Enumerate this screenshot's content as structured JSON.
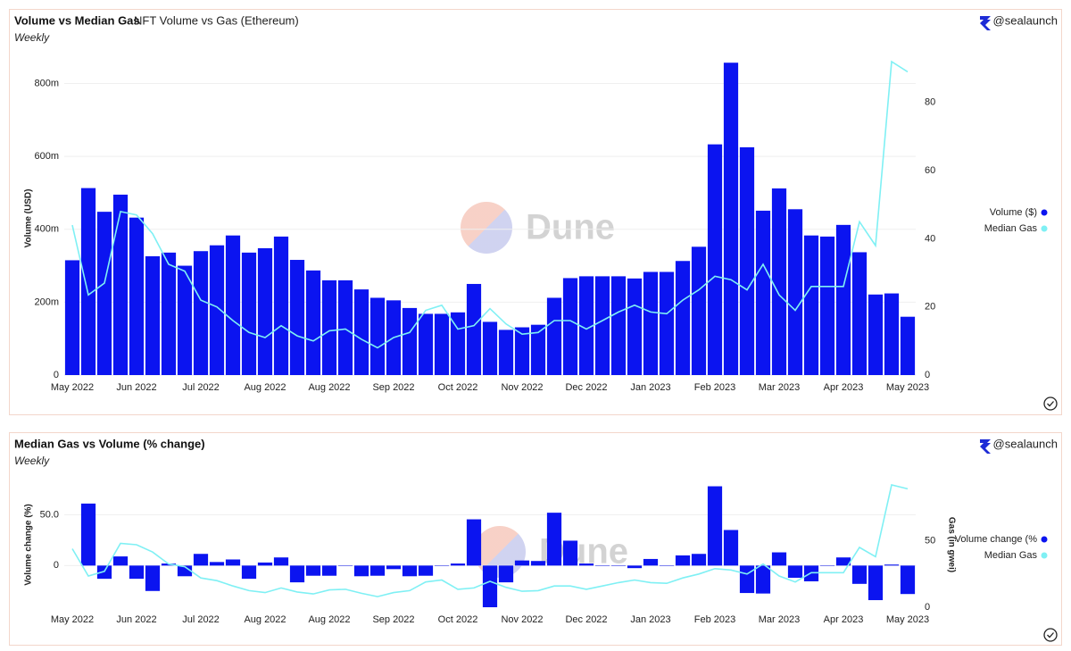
{
  "chart_data": [
    {
      "type": "bar",
      "title": "Volume vs Median Gas",
      "subtitle": "NFT Volume vs Gas (Ethereum)",
      "period": "Weekly",
      "attribution": "@sealaunch",
      "watermark": "Dune",
      "y_label": "Volume (USD)",
      "legend": "right",
      "grid": true,
      "categories": [
        "May 2022",
        null,
        null,
        null,
        "Jun 2022",
        null,
        null,
        null,
        "Jul 2022",
        null,
        null,
        null,
        "Aug 2022",
        null,
        null,
        null,
        "Aug 2022",
        null,
        null,
        null,
        "Sep 2022",
        null,
        null,
        null,
        "Oct 2022",
        null,
        null,
        null,
        "Nov 2022",
        null,
        null,
        null,
        "Dec 2022",
        null,
        null,
        null,
        "Jan 2023",
        null,
        null,
        null,
        "Feb 2023",
        null,
        null,
        null,
        "Mar 2023",
        null,
        null,
        null,
        "Apr 2023",
        null,
        null,
        null,
        "May 2023"
      ],
      "ylim": [
        0,
        860
      ],
      "yticks": [
        0,
        {
          "value": 200,
          "label": "200m"
        },
        {
          "value": 400,
          "label": "400m"
        },
        {
          "value": 600,
          "label": "600m"
        },
        {
          "value": 800,
          "label": "800m"
        }
      ],
      "y2lim": [
        0,
        92
      ],
      "y2ticks": [
        0,
        20,
        40,
        60,
        80
      ],
      "series": [
        {
          "name": "Volume ($)",
          "type": "bar",
          "color": "#0b14f0",
          "values": [
            315,
            513,
            448,
            495,
            432,
            326,
            336,
            300,
            340,
            356,
            383,
            336,
            348,
            380,
            316,
            287,
            260,
            260,
            235,
            212,
            205,
            184,
            168,
            168,
            172,
            250,
            146,
            124,
            131,
            138,
            212,
            266,
            271,
            271,
            271,
            265,
            283,
            283,
            313,
            352,
            633,
            857,
            625,
            451,
            512,
            455,
            383,
            380,
            412,
            337,
            221,
            224,
            160
          ]
        },
        {
          "name": "Median Gas",
          "type": "line",
          "axis": "y2",
          "color": "#7ff0f4",
          "values": [
            44,
            23.5,
            27,
            48,
            47,
            41.5,
            32.5,
            30.5,
            22,
            20,
            16,
            12.5,
            11,
            14.5,
            11.5,
            10,
            13,
            13.5,
            10.5,
            8,
            11,
            12.5,
            19,
            20.5,
            13.5,
            14.5,
            19.5,
            15,
            12,
            12.5,
            16,
            16,
            13.5,
            16,
            18.5,
            20.5,
            18.5,
            18,
            22,
            25,
            29,
            28,
            25,
            32.5,
            23.5,
            19,
            26,
            26,
            26,
            45,
            38,
            92,
            89
          ]
        }
      ]
    },
    {
      "type": "bar",
      "title": "Median Gas vs Volume (% change)",
      "period": "Weekly",
      "attribution": "@sealaunch",
      "watermark": "Dune",
      "y_label": "Volume change (%)",
      "y2_label": "Gas (in gwei)",
      "legend": "right",
      "grid": true,
      "categories": [
        "May 2022",
        null,
        null,
        null,
        "Jun 2022",
        null,
        null,
        null,
        "Jul 2022",
        null,
        null,
        null,
        "Aug 2022",
        null,
        null,
        null,
        "Aug 2022",
        null,
        null,
        null,
        "Sep 2022",
        null,
        null,
        null,
        "Oct 2022",
        null,
        null,
        null,
        "Nov 2022",
        null,
        null,
        null,
        "Dec 2022",
        null,
        null,
        null,
        "Jan 2023",
        null,
        null,
        null,
        "Feb 2023",
        null,
        null,
        null,
        "Mar 2023",
        null,
        null,
        null,
        "Apr 2023",
        null,
        null,
        null,
        "May 2023"
      ],
      "ylim": [
        -41,
        82
      ],
      "yticks": [
        0,
        {
          "value": 50,
          "label": "50.0"
        }
      ],
      "y2lim": [
        0,
        94
      ],
      "y2ticks": [
        0,
        50
      ],
      "series": [
        {
          "name": "Volume change (%",
          "type": "bar",
          "color": "#0b14f0",
          "values": [
            null,
            61,
            -13,
            9,
            -13,
            -25,
            2,
            -10.5,
            11.5,
            3.5,
            6,
            -13,
            3,
            8,
            -16.5,
            -10,
            -10,
            0,
            -10.5,
            -10,
            -3.5,
            -10.5,
            -10,
            0,
            2,
            45.5,
            -41,
            -16.5,
            5,
            4.5,
            52,
            24.5,
            2,
            0,
            0,
            -2.5,
            6.5,
            0,
            10,
            11.5,
            78,
            35,
            -27,
            -27.5,
            13,
            -12,
            -15.5,
            0,
            8,
            -18,
            -34,
            1,
            -28
          ]
        },
        {
          "name": "Median Gas",
          "type": "line",
          "axis": "y2",
          "color": "#7ff0f4",
          "values": [
            44,
            23.5,
            27,
            48,
            47,
            41.5,
            32.5,
            30.5,
            22,
            20,
            16,
            12.5,
            11,
            14.5,
            11.5,
            10,
            13,
            13.5,
            10.5,
            8,
            11,
            12.5,
            19,
            20.5,
            13.5,
            14.5,
            19.5,
            15,
            12,
            12.5,
            16,
            16,
            13.5,
            16,
            18.5,
            20.5,
            18.5,
            18,
            22,
            25,
            29,
            28,
            25,
            32.5,
            23.5,
            19,
            26,
            26,
            26,
            45,
            38,
            92,
            89
          ]
        }
      ]
    }
  ]
}
